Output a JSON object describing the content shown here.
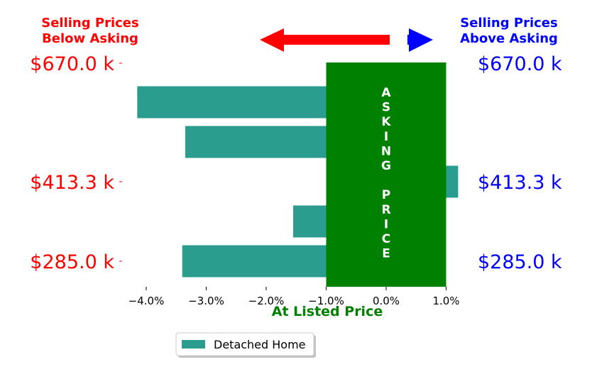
{
  "header": {
    "left_line1": "Selling Prices",
    "left_line2": "Below Asking",
    "right_line1": "Selling Prices",
    "right_line2": "Above Asking",
    "left_color": "#ff0000",
    "right_color": "#0000ff"
  },
  "chart_data": {
    "type": "bar",
    "orientation": "horizontal",
    "series": [
      {
        "name": "Detached Home",
        "color": "#2a9d8f",
        "values": [
          -4.15,
          -3.35,
          1.2,
          -1.55,
          -3.4
        ]
      }
    ],
    "xlabel": "At Listed Price",
    "xlabel_color": "#008000",
    "xticks": [
      "−4.0%",
      "−3.0%",
      "−2.0%",
      "−1.0%",
      "0.0%",
      "1.0%"
    ],
    "xtick_values": [
      -4,
      -3,
      -2,
      -1,
      0,
      1
    ],
    "xlim": [
      -4.5,
      1.3
    ],
    "ytick_labels": [
      "$670.0 k",
      "$413.3 k",
      "$285.0 k"
    ],
    "ytick_bar_index": [
      -0.5,
      2,
      4
    ],
    "ytick_left_color": "#ff0000",
    "ytick_right_color": "#0000ff",
    "asking_band": {
      "from": -1,
      "to": 1,
      "color": "#008000",
      "label": "ASKING PRICE"
    },
    "legend": {
      "position": "bottom-center",
      "label": "Detached Home"
    },
    "grid": false
  },
  "arrows": {
    "left_color": "#ff0000",
    "right_color": "#0000ff"
  }
}
